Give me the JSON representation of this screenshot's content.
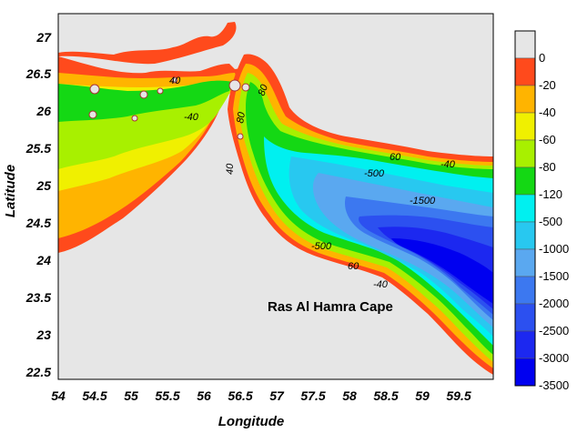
{
  "map": {
    "x_axis_title": "Longitude",
    "y_axis_title": "Latitude",
    "x_ticks": [
      "54",
      "54.5",
      "55",
      "55.5",
      "56",
      "56.5",
      "57",
      "57.5",
      "58",
      "58.5",
      "59",
      "59.5"
    ],
    "y_ticks": [
      "27",
      "26.5",
      "26",
      "25.5",
      "25",
      "24.5",
      "24",
      "23.5",
      "23",
      "22.5"
    ],
    "place_label": "Ras Al Hamra Cape",
    "contour_labels": [
      "40",
      "-40",
      "80",
      "80",
      "40",
      "-500",
      "60",
      "-40",
      "-1500",
      "-500",
      "60",
      "-40"
    ],
    "land_color": "#e6e6e6"
  },
  "legend": {
    "labels": [
      "0",
      "-20",
      "-40",
      "-60",
      "-80",
      "-120",
      "-500",
      "-1000",
      "-1500",
      "-2000",
      "-2500",
      "-3000",
      "-3500"
    ],
    "colors": [
      "#e6e6e6",
      "#ff4a1c",
      "#ffb400",
      "#f0f000",
      "#a8f000",
      "#14d814",
      "#00f0f0",
      "#28c8f0",
      "#5aa8f0",
      "#3c78f0",
      "#2c50f0",
      "#1c28f0",
      "#0000f0"
    ]
  }
}
